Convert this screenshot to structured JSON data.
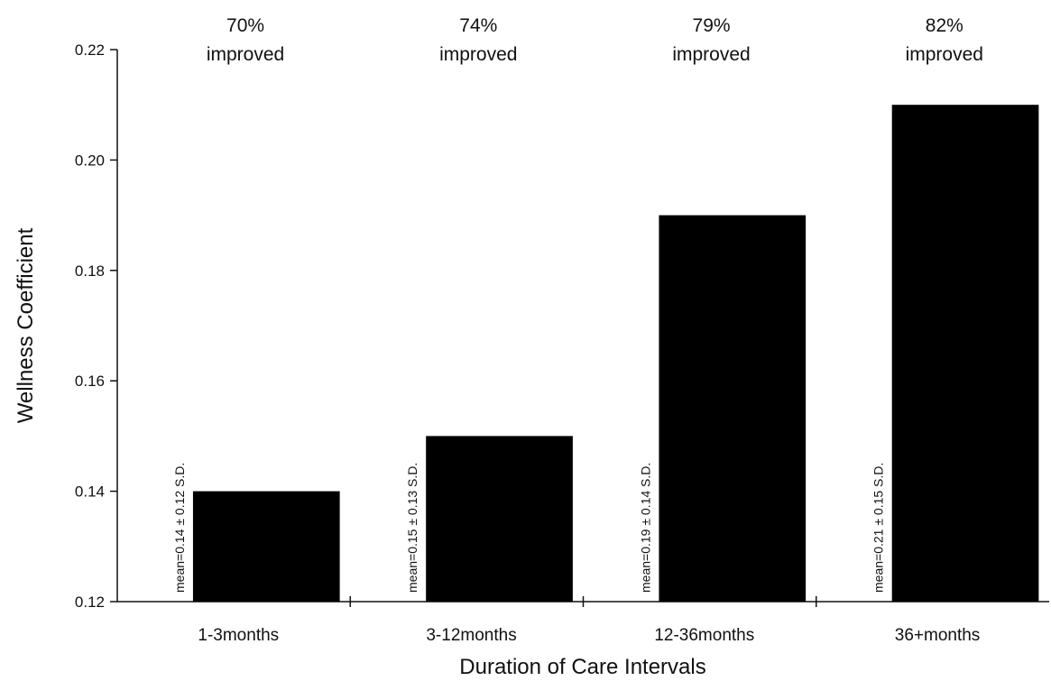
{
  "chart_data": {
    "type": "bar",
    "title": "",
    "xlabel": "Duration of Care Intervals",
    "ylabel": "Wellness Coefficient",
    "categories": [
      "1-3months",
      "3-12months",
      "12-36months",
      "36+months"
    ],
    "values": [
      0.14,
      0.15,
      0.19,
      0.21
    ],
    "ylim": [
      0.12,
      0.22
    ],
    "yticks": [
      "0.12",
      "0.14",
      "0.16",
      "0.18",
      "0.20",
      "0.22"
    ],
    "top_annotations": [
      {
        "percent": "70%",
        "text": "improved"
      },
      {
        "percent": "74%",
        "text": "improved"
      },
      {
        "percent": "79%",
        "text": "improved"
      },
      {
        "percent": "82%",
        "text": "improved"
      }
    ],
    "bar_annotations": [
      "mean=0.14 ± 0.12 S.D.",
      "mean=0.15 ± 0.13 S.D.",
      "mean=0.19 ± 0.14 S.D.",
      "mean=0.21 ± 0.15 S.D."
    ],
    "grid": false,
    "bar_color": "#000000"
  }
}
